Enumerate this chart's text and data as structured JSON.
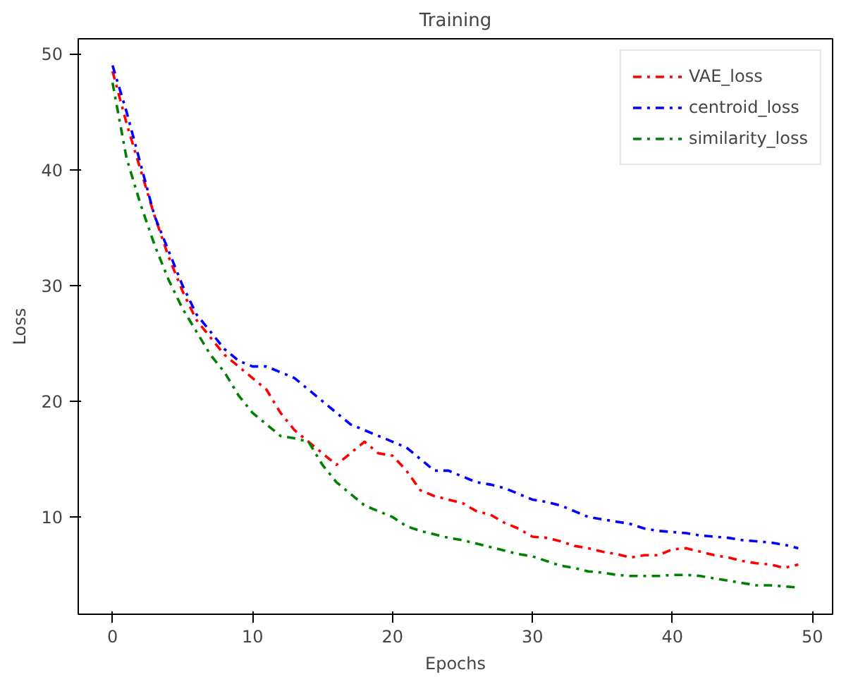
{
  "chart_data": {
    "type": "line",
    "title": "Training",
    "xlabel": "Epochs",
    "ylabel": "Loss",
    "x": [
      0,
      1,
      2,
      3,
      4,
      5,
      6,
      7,
      8,
      9,
      10,
      11,
      12,
      13,
      14,
      15,
      16,
      17,
      18,
      19,
      20,
      21,
      22,
      23,
      24,
      25,
      26,
      27,
      28,
      29,
      30,
      31,
      32,
      33,
      34,
      35,
      36,
      37,
      38,
      39,
      40,
      41,
      42,
      43,
      44,
      45,
      46,
      47,
      48,
      49
    ],
    "series": [
      {
        "name": "VAE_loss",
        "color": "#ff0000",
        "values": [
          48.5,
          44,
          40,
          36,
          32.5,
          29.5,
          27,
          25.5,
          24,
          23,
          22,
          21,
          19,
          17.5,
          16.5,
          15.5,
          14.5,
          15.5,
          16.5,
          15.5,
          15.3,
          14,
          12.3,
          11.8,
          11.5,
          11.2,
          10.5,
          10.2,
          9.5,
          9,
          8.3,
          8.2,
          7.9,
          7.5,
          7.3,
          7,
          6.8,
          6.5,
          6.7,
          6.7,
          7.2,
          7.3,
          7,
          6.7,
          6.5,
          6.2,
          6,
          5.9,
          5.6,
          5.9
        ]
      },
      {
        "name": "centroid_loss",
        "color": "#0000ff",
        "values": [
          49,
          45,
          40.5,
          36,
          33,
          30,
          27.5,
          26,
          24.5,
          23.5,
          23,
          23,
          22.5,
          22,
          21,
          20,
          19,
          18,
          17.5,
          17,
          16.5,
          16,
          15,
          14,
          14,
          13.5,
          13,
          12.8,
          12.5,
          12,
          11.5,
          11.3,
          11,
          10.5,
          10,
          9.8,
          9.6,
          9.4,
          9,
          8.8,
          8.7,
          8.6,
          8.4,
          8.3,
          8.2,
          8,
          7.9,
          7.8,
          7.6,
          7.3
        ]
      },
      {
        "name": "similarity_loss",
        "color": "#008000",
        "values": [
          47.5,
          41,
          37,
          33.5,
          30.5,
          28,
          26,
          24,
          22.5,
          20.5,
          19,
          18,
          17,
          16.8,
          16.5,
          14.5,
          13,
          12,
          11,
          10.5,
          10,
          9.2,
          8.8,
          8.5,
          8.2,
          8,
          7.7,
          7.4,
          7.1,
          6.8,
          6.6,
          6.2,
          5.8,
          5.6,
          5.3,
          5.2,
          5,
          4.9,
          4.9,
          4.9,
          5,
          5,
          4.9,
          4.7,
          4.5,
          4.3,
          4.1,
          4.1,
          4,
          3.9
        ]
      }
    ],
    "xlim": [
      -2.45,
      51.45
    ],
    "ylim": [
      1.6,
      51.3
    ],
    "xticks": [
      0,
      10,
      20,
      30,
      40,
      50
    ],
    "yticks": [
      10,
      20,
      30,
      40,
      50
    ],
    "grid": false,
    "legend": "top right",
    "marker": "none",
    "line_style": "dashdot"
  }
}
